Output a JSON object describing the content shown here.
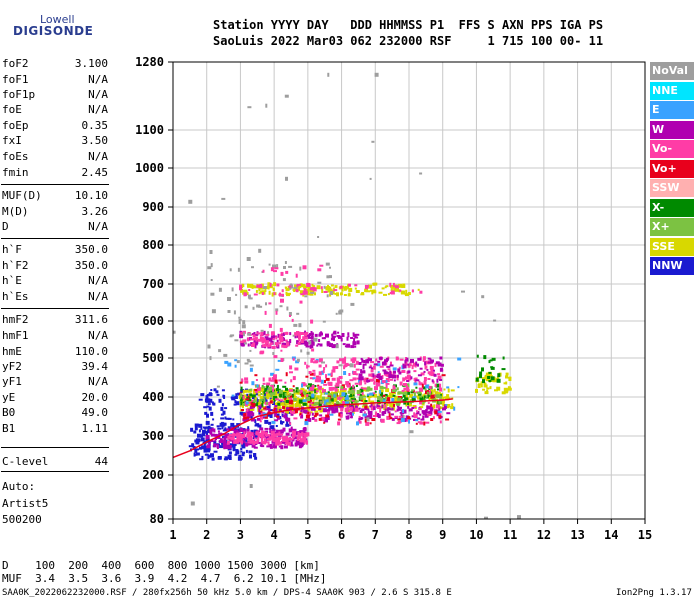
{
  "logo": {
    "line1": "Lowell",
    "line2": "DIGISONDE"
  },
  "header": {
    "line1": "Station YYYY DAY   DDD HHMMSS P1  FFS S AXN PPS IGA PS",
    "line2": "SaoLuis 2022 Mar03 062 232000 RSF     1 715 100 00- 11"
  },
  "params": [
    {
      "name": "foF2",
      "value": "3.100"
    },
    {
      "name": "foF1",
      "value": "N/A"
    },
    {
      "name": "foF1p",
      "value": "N/A"
    },
    {
      "name": "foE",
      "value": "N/A"
    },
    {
      "name": "foEp",
      "value": "0.35"
    },
    {
      "name": "fxI",
      "value": "3.50"
    },
    {
      "name": "foEs",
      "value": "N/A"
    },
    {
      "name": "fmin",
      "value": "2.45"
    },
    {
      "name": "MUF(D)",
      "value": "10.10"
    },
    {
      "name": "M(D)",
      "value": "3.26"
    },
    {
      "name": "D",
      "value": "N/A"
    },
    {
      "name": "h`F",
      "value": "350.0"
    },
    {
      "name": "h`F2",
      "value": "350.0"
    },
    {
      "name": "h`E",
      "value": "N/A"
    },
    {
      "name": "h`Es",
      "value": "N/A"
    },
    {
      "name": "hmF2",
      "value": "311.6"
    },
    {
      "name": "hmF1",
      "value": "N/A"
    },
    {
      "name": "hmE",
      "value": "110.0"
    },
    {
      "name": "yF2",
      "value": "39.4"
    },
    {
      "name": "yF1",
      "value": "N/A"
    },
    {
      "name": "yE",
      "value": "20.0"
    },
    {
      "name": "B0",
      "value": "49.0"
    },
    {
      "name": "B1",
      "value": "1.11"
    },
    {
      "name": "C-level",
      "value": "44"
    }
  ],
  "auto": {
    "line1": "Auto:",
    "line2": "Artist5",
    "line3": "500200"
  },
  "legend": [
    {
      "label": "NoVal",
      "color": "#9e9e9e"
    },
    {
      "label": "NNE",
      "color": "#00e5ff"
    },
    {
      "label": "E",
      "color": "#3aa2ff"
    },
    {
      "label": "W",
      "color": "#b000b0"
    },
    {
      "label": "Vo-",
      "color": "#ff3ca6"
    },
    {
      "label": "Vo+",
      "color": "#e8001c"
    },
    {
      "label": "SSW",
      "color": "#ffb0b0"
    },
    {
      "label": "X-",
      "color": "#008a00"
    },
    {
      "label": "X+",
      "color": "#7cc242"
    },
    {
      "label": "SSE",
      "color": "#d8d800"
    },
    {
      "label": "NNW",
      "color": "#1a1ad0"
    }
  ],
  "bottom": {
    "line1": "D    100  200  400  600  800 1000 1500 3000 [km]",
    "line2": "MUF  3.4  3.5  3.6  3.9  4.2  4.7  6.2 10.1 [MHz]"
  },
  "footer": {
    "left": "SAA0K_2022062232000.RSF / 280fx256h 50 kHz 5.0 km / DPS-4 SAA0K 903 / 2.6 S 315.8 E",
    "right": "Ion2Png 1.3.17"
  },
  "chart_data": {
    "type": "scatter",
    "xlim": [
      1,
      15
    ],
    "ylim": [
      80,
      1280
    ],
    "x_ticks": [
      1,
      2,
      3,
      4,
      5,
      6,
      7,
      8,
      9,
      10,
      11,
      12,
      13,
      14,
      15
    ],
    "y_ticks": [
      80,
      200,
      300,
      400,
      500,
      600,
      700,
      800,
      900,
      1000,
      1100,
      1280
    ],
    "grid": true,
    "legend_position": "right",
    "clusters": [
      {
        "x": [
          1.5,
          3.5
        ],
        "y": [
          240,
          330
        ],
        "color": "#1a1ad0",
        "n": 160
      },
      {
        "x": [
          2.0,
          5.0
        ],
        "y": [
          270,
          320
        ],
        "color": "#b000b0",
        "n": 200
      },
      {
        "x": [
          2.6,
          5.0
        ],
        "y": [
          280,
          310
        ],
        "color": "#ff3ca6",
        "n": 140
      },
      {
        "x": [
          1.8,
          4.5
        ],
        "y": [
          320,
          420
        ],
        "color": "#1a1ad0",
        "n": 140
      },
      {
        "x": [
          3.0,
          6.5
        ],
        "y": [
          360,
          420
        ],
        "color": "#d8d800",
        "n": 220
      },
      {
        "x": [
          4.0,
          9.3
        ],
        "y": [
          370,
          420
        ],
        "color": "#d8d800",
        "n": 260
      },
      {
        "x": [
          3.0,
          9.3
        ],
        "y": [
          340,
          380
        ],
        "color": "#b000b0",
        "n": 200
      },
      {
        "x": [
          3.0,
          9.0
        ],
        "y": [
          380,
          430
        ],
        "color": "#008a00",
        "n": 140
      },
      {
        "x": [
          3.0,
          9.0
        ],
        "y": [
          330,
          450
        ],
        "color": "#ff3ca6",
        "n": 160
      },
      {
        "x": [
          3.0,
          9.3
        ],
        "y": [
          330,
          460
        ],
        "color": "#e8001c",
        "n": 90
      },
      {
        "x": [
          3.0,
          9.0
        ],
        "y": [
          380,
          430
        ],
        "color": "#7cc242",
        "n": 100
      },
      {
        "x": [
          2.5,
          9.5
        ],
        "y": [
          330,
          500
        ],
        "color": "#3aa2ff",
        "n": 70
      },
      {
        "x": [
          5.0,
          9.0
        ],
        "y": [
          420,
          500
        ],
        "color": "#ff3ca6",
        "n": 160
      },
      {
        "x": [
          6.5,
          9.0
        ],
        "y": [
          440,
          500
        ],
        "color": "#b000b0",
        "n": 80
      },
      {
        "x": [
          10.0,
          11.0
        ],
        "y": [
          410,
          460
        ],
        "color": "#d8d800",
        "n": 50
      },
      {
        "x": [
          10.0,
          11.0
        ],
        "y": [
          440,
          510
        ],
        "color": "#008a00",
        "n": 20
      },
      {
        "x": [
          3.0,
          6.5
        ],
        "y": [
          530,
          570
        ],
        "color": "#b000b0",
        "n": 130
      },
      {
        "x": [
          3.0,
          5.0
        ],
        "y": [
          530,
          570
        ],
        "color": "#ff3ca6",
        "n": 60
      },
      {
        "x": [
          3.0,
          6.5
        ],
        "y": [
          670,
          700
        ],
        "color": "#d8d800",
        "n": 120
      },
      {
        "x": [
          6.5,
          8.5
        ],
        "y": [
          670,
          700
        ],
        "color": "#d8d800",
        "n": 40
      },
      {
        "x": [
          3.0,
          8.5
        ],
        "y": [
          670,
          700
        ],
        "color": "#ff3ca6",
        "n": 40
      },
      {
        "x": [
          2.0,
          6.0
        ],
        "y": [
          480,
          760
        ],
        "color": "#9e9e9e",
        "n": 90
      },
      {
        "x": [
          3.6,
          5.4
        ],
        "y": [
          450,
          750
        ],
        "color": "#ff3ca6",
        "n": 50
      },
      {
        "x": [
          1.0,
          12.0
        ],
        "y": [
          80,
          1280
        ],
        "color": "#9e9e9e",
        "n": 30
      }
    ],
    "trace_curve": {
      "color": "#e8001c",
      "x": [
        1.0,
        1.5,
        2.0,
        2.5,
        3.0,
        3.5,
        4.0,
        4.5,
        5.0,
        5.5,
        6.0,
        6.5,
        7.0,
        8.0,
        9.0,
        9.3
      ],
      "y": [
        245,
        262,
        285,
        305,
        330,
        350,
        360,
        368,
        372,
        376,
        380,
        382,
        385,
        388,
        392,
        395
      ]
    }
  }
}
